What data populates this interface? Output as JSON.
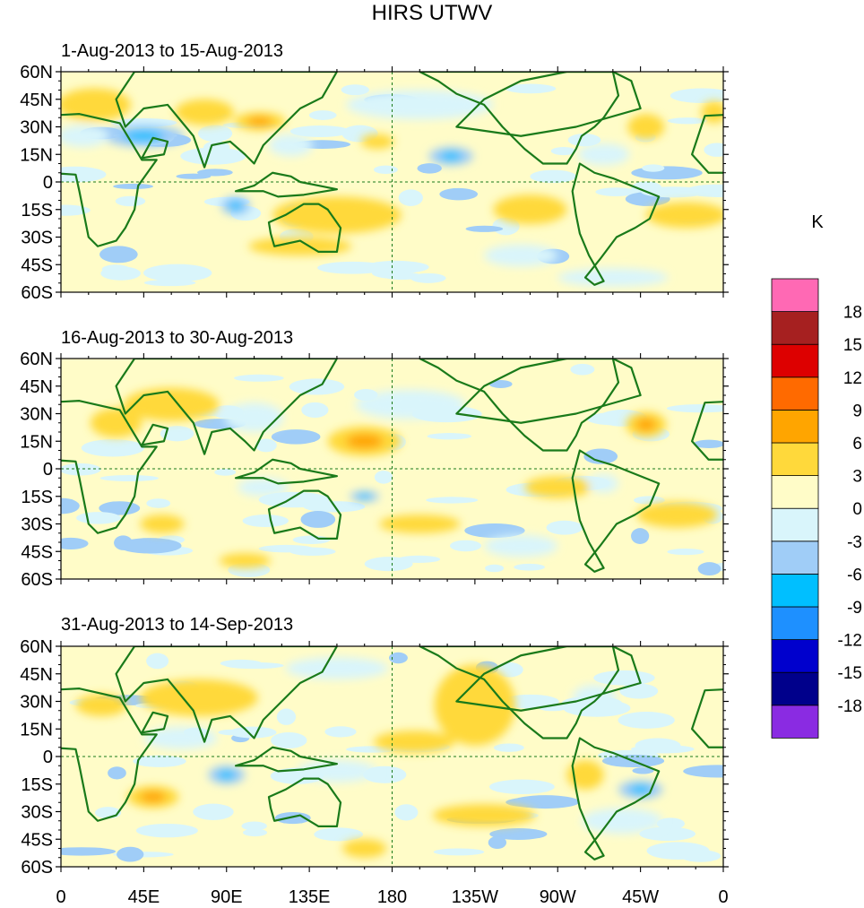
{
  "chart_data": {
    "type": "heatmap",
    "title": "HIRS UTWV",
    "units_label": "K",
    "x_tick_labels": [
      "0",
      "45E",
      "90E",
      "135E",
      "180",
      "135W",
      "90W",
      "45W",
      "0"
    ],
    "x_tick_lon": [
      0,
      45,
      90,
      135,
      180,
      225,
      270,
      315,
      360
    ],
    "y_tick_labels": [
      "60N",
      "45N",
      "30N",
      "15N",
      "0",
      "15S",
      "30S",
      "45S",
      "60S"
    ],
    "y_tick_lat": [
      60,
      45,
      30,
      15,
      0,
      -15,
      -30,
      -45,
      -60
    ],
    "xlim": [
      0,
      360
    ],
    "ylim": [
      -60,
      60
    ],
    "colorbar": {
      "levels": [
        "-18",
        "-15",
        "-12",
        "-9",
        "-6",
        "-3",
        "0",
        "3",
        "6",
        "9",
        "12",
        "15",
        "18"
      ],
      "colors": [
        "#8a2be2",
        "#00008b",
        "#0000cd",
        "#1e90ff",
        "#00bfff",
        "#a0cdf7",
        "#d9f5fb",
        "#fffcc8",
        "#ffd93b",
        "#ffa500",
        "#ff6a00",
        "#dd0000",
        "#a62020",
        "#ff69b4"
      ]
    },
    "panels": [
      {
        "label": "1-Aug-2013 to 15-Aug-2013",
        "anomaly_features": [
          {
            "lon": 45,
            "lat": 25,
            "rx": 22,
            "ry": 6,
            "value": -8
          },
          {
            "lon": 12,
            "lat": 25,
            "rx": 14,
            "ry": 6,
            "value": -4
          },
          {
            "lon": 18,
            "lat": 42,
            "rx": 20,
            "ry": 9,
            "value": 4
          },
          {
            "lon": 78,
            "lat": 38,
            "rx": 16,
            "ry": 7,
            "value": 4
          },
          {
            "lon": 108,
            "lat": 33,
            "rx": 14,
            "ry": 5,
            "value": 6
          },
          {
            "lon": 125,
            "lat": 20,
            "rx": 12,
            "ry": 6,
            "value": -3
          },
          {
            "lon": 95,
            "lat": -13,
            "rx": 8,
            "ry": 5,
            "value": -8
          },
          {
            "lon": 150,
            "lat": -18,
            "rx": 35,
            "ry": 10,
            "value": 4
          },
          {
            "lon": 130,
            "lat": -35,
            "rx": 28,
            "ry": 5,
            "value": 4
          },
          {
            "lon": 172,
            "lat": 22,
            "rx": 9,
            "ry": 4,
            "value": 4
          },
          {
            "lon": 195,
            "lat": 42,
            "rx": 40,
            "ry": 8,
            "value": -3
          },
          {
            "lon": 212,
            "lat": 14,
            "rx": 12,
            "ry": 5,
            "value": -7
          },
          {
            "lon": 255,
            "lat": -15,
            "rx": 20,
            "ry": 8,
            "value": 3
          },
          {
            "lon": 250,
            "lat": -40,
            "rx": 20,
            "ry": 6,
            "value": -3
          },
          {
            "lon": 295,
            "lat": 15,
            "rx": 14,
            "ry": 6,
            "value": -3
          },
          {
            "lon": 318,
            "lat": 30,
            "rx": 10,
            "ry": 7,
            "value": 5
          },
          {
            "lon": 340,
            "lat": -18,
            "rx": 22,
            "ry": 7,
            "value": 4
          },
          {
            "lon": 355,
            "lat": 38,
            "rx": 7,
            "ry": 6,
            "value": 4
          },
          {
            "lon": 300,
            "lat": -52,
            "rx": 30,
            "ry": 5,
            "value": -3
          }
        ]
      },
      {
        "label": "16-Aug-2013 to 30-Aug-2013",
        "anomaly_features": [
          {
            "lon": 60,
            "lat": 35,
            "rx": 26,
            "ry": 9,
            "value": 4
          },
          {
            "lon": 30,
            "lat": 25,
            "rx": 14,
            "ry": 8,
            "value": 4
          },
          {
            "lon": 105,
            "lat": 28,
            "rx": 16,
            "ry": 8,
            "value": -3
          },
          {
            "lon": 165,
            "lat": 15,
            "rx": 20,
            "ry": 8,
            "value": 6
          },
          {
            "lon": 165,
            "lat": -15,
            "rx": 8,
            "ry": 3,
            "value": -7
          },
          {
            "lon": 110,
            "lat": -10,
            "rx": 14,
            "ry": 5,
            "value": -3
          },
          {
            "lon": 55,
            "lat": -30,
            "rx": 12,
            "ry": 5,
            "value": 4
          },
          {
            "lon": 100,
            "lat": -50,
            "rx": 14,
            "ry": 4,
            "value": 4
          },
          {
            "lon": 190,
            "lat": 35,
            "rx": 30,
            "ry": 8,
            "value": -3
          },
          {
            "lon": 195,
            "lat": -30,
            "rx": 22,
            "ry": 5,
            "value": 3
          },
          {
            "lon": 270,
            "lat": -10,
            "rx": 18,
            "ry": 6,
            "value": 4
          },
          {
            "lon": 250,
            "lat": -42,
            "rx": 20,
            "ry": 6,
            "value": -3
          },
          {
            "lon": 318,
            "lat": 24,
            "rx": 11,
            "ry": 7,
            "value": 6
          },
          {
            "lon": 335,
            "lat": -25,
            "rx": 22,
            "ry": 7,
            "value": 5
          },
          {
            "lon": 295,
            "lat": -8,
            "rx": 8,
            "ry": 5,
            "value": -3
          }
        ]
      },
      {
        "label": "31-Aug-2013 to 14-Sep-2013",
        "anomaly_features": [
          {
            "lon": 75,
            "lat": 32,
            "rx": 32,
            "ry": 10,
            "value": 5
          },
          {
            "lon": 22,
            "lat": 28,
            "rx": 14,
            "ry": 6,
            "value": 4
          },
          {
            "lon": 65,
            "lat": 10,
            "rx": 20,
            "ry": 6,
            "value": -3
          },
          {
            "lon": 90,
            "lat": -10,
            "rx": 10,
            "ry": 5,
            "value": -7
          },
          {
            "lon": 50,
            "lat": -22,
            "rx": 14,
            "ry": 6,
            "value": 6
          },
          {
            "lon": 150,
            "lat": -8,
            "rx": 22,
            "ry": 6,
            "value": -3
          },
          {
            "lon": 225,
            "lat": 28,
            "rx": 22,
            "ry": 22,
            "value": 5
          },
          {
            "lon": 192,
            "lat": 8,
            "rx": 22,
            "ry": 6,
            "value": 5
          },
          {
            "lon": 150,
            "lat": 48,
            "rx": 28,
            "ry": 6,
            "value": -3
          },
          {
            "lon": 230,
            "lat": -32,
            "rx": 28,
            "ry": 6,
            "value": 4
          },
          {
            "lon": 285,
            "lat": -10,
            "rx": 10,
            "ry": 8,
            "value": 5
          },
          {
            "lon": 315,
            "lat": -18,
            "rx": 12,
            "ry": 5,
            "value": -8
          },
          {
            "lon": 305,
            "lat": -35,
            "rx": 22,
            "ry": 7,
            "value": -3
          },
          {
            "lon": 290,
            "lat": 32,
            "rx": 12,
            "ry": 7,
            "value": -3
          },
          {
            "lon": 165,
            "lat": -50,
            "rx": 12,
            "ry": 5,
            "value": 4
          }
        ]
      }
    ]
  }
}
